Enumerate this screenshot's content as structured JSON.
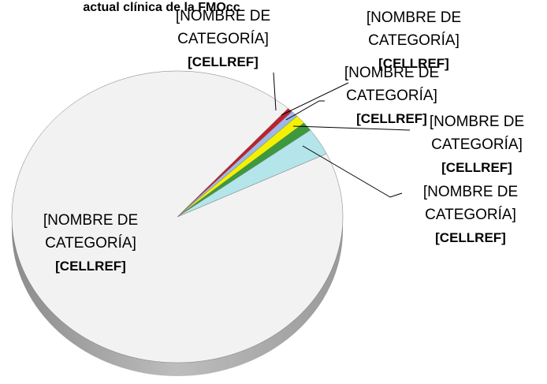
{
  "chart_data": {
    "type": "pie",
    "title": "actual clínica de la FMOcc",
    "categories": [
      "[NOMBRE DE CATEGORÍA]",
      "[NOMBRE DE CATEGORÍA]",
      "[NOMBRE DE CATEGORÍA]",
      "[NOMBRE DE CATEGORÍA]",
      "[NOMBRE DE CATEGORÍA]",
      "[NOMBRE DE CATEGORÍA]"
    ],
    "values": [
      93.8,
      0.5,
      0.7,
      1,
      1,
      3
    ],
    "value_labels": [
      "[CELLREF]",
      "[CELLREF]",
      "[CELLREF]",
      "[CELLREF]",
      "[CELLREF]",
      "[CELLREF]"
    ],
    "colors": [
      "#f2f2f2",
      "#c0202e",
      "#9db9e8",
      "#f2f200",
      "#3c9a3c",
      "#b3e5ea"
    ]
  }
}
